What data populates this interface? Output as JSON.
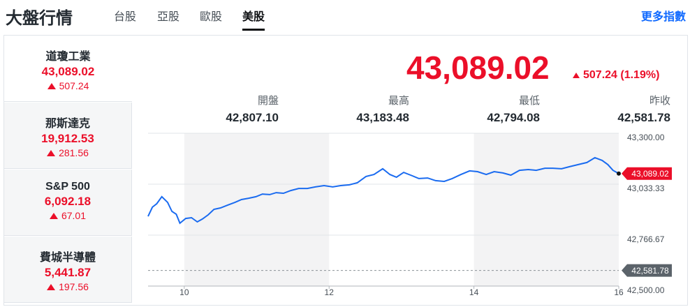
{
  "header": {
    "title": "大盤行情",
    "tabs": [
      "台股",
      "亞股",
      "歐股",
      "美股"
    ],
    "more_link": "更多指數"
  },
  "indices": [
    {
      "name": "道瓊工業",
      "price": "43,089.02",
      "change": "507.24"
    },
    {
      "name": "那斯達克",
      "price": "19,912.53",
      "change": "281.56"
    },
    {
      "name": "S&P 500",
      "price": "6,092.18",
      "change": "67.01"
    },
    {
      "name": "費城半導體",
      "price": "5,441.87",
      "change": "197.56"
    }
  ],
  "quote": {
    "price": "43,089.02",
    "change": "507.24 (1.19%)"
  },
  "stats": [
    {
      "label": "開盤",
      "value": "42,807.10"
    },
    {
      "label": "最高",
      "value": "43,183.48"
    },
    {
      "label": "最低",
      "value": "42,794.08"
    },
    {
      "label": "昨收",
      "value": "42,581.78"
    }
  ],
  "chart_data": {
    "type": "line",
    "color": "#1a6bf0",
    "x": [
      9.5,
      9.56,
      9.62,
      9.69,
      9.77,
      9.83,
      9.89,
      9.94,
      10.02,
      10.1,
      10.18,
      10.25,
      10.33,
      10.41,
      10.5,
      10.6,
      10.7,
      10.79,
      10.89,
      10.99,
      11.08,
      11.18,
      11.27,
      11.37,
      11.47,
      11.58,
      11.7,
      11.81,
      11.93,
      12.05,
      12.16,
      12.28,
      12.39,
      12.51,
      12.62,
      12.74,
      12.84,
      12.93,
      13.03,
      13.15,
      13.24,
      13.36,
      13.47,
      13.59,
      13.7,
      13.82,
      13.94,
      14.05,
      14.17,
      14.28,
      14.4,
      14.51,
      14.63,
      14.75,
      14.86,
      14.98,
      15.09,
      15.21,
      15.32,
      15.44,
      15.56,
      15.67,
      15.77,
      15.85,
      15.92,
      16.0
    ],
    "values": [
      42865,
      42913,
      42931,
      42968,
      42938,
      42891,
      42876,
      42829,
      42854,
      42858,
      42836,
      42851,
      42873,
      42902,
      42909,
      42924,
      42938,
      42953,
      42960,
      42968,
      42982,
      42979,
      42989,
      42986,
      43000,
      43011,
      43011,
      43019,
      43026,
      43019,
      43026,
      43030,
      43041,
      43074,
      43084,
      43114,
      43084,
      43070,
      43095,
      43077,
      43063,
      43066,
      43052,
      43048,
      43063,
      43084,
      43103,
      43099,
      43084,
      43099,
      43092,
      43081,
      43106,
      43110,
      43106,
      43117,
      43117,
      43114,
      43125,
      43136,
      43147,
      43172,
      43158,
      43136,
      43106,
      43089.02
    ],
    "xlim": [
      9.5,
      16
    ],
    "xticks": [
      10,
      12,
      14,
      16
    ],
    "ylim": [
      42500,
      43300
    ],
    "yticks": [
      {
        "value": 43300,
        "label": "43,300.00"
      },
      {
        "value": 43033.33,
        "label": "43,033.33"
      },
      {
        "value": 42766.67,
        "label": "42,766.67"
      },
      {
        "value": 42500,
        "label": "42,500.00"
      }
    ],
    "reference_line": {
      "value": 42581.78,
      "label": "42,581.78"
    },
    "last_label": {
      "value": 43089.02,
      "label": "43,089.02"
    }
  }
}
